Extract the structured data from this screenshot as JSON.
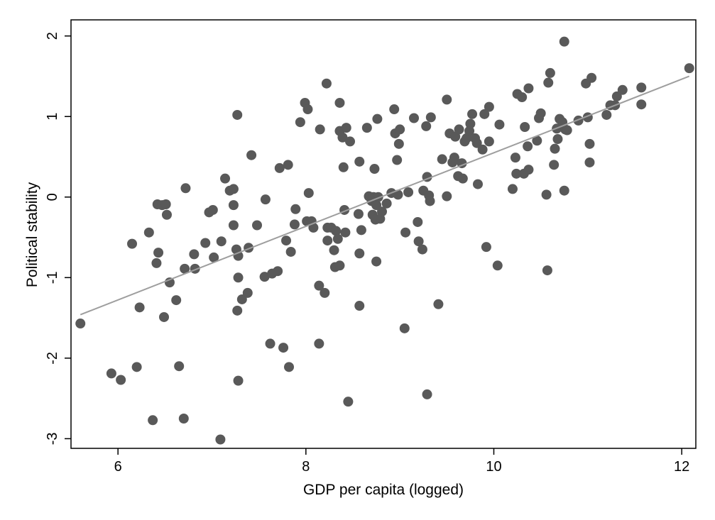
{
  "chart_data": {
    "type": "scatter",
    "title": "",
    "xlabel": "GDP per capita (logged)",
    "ylabel": "Political stability",
    "xlim": [
      5.5,
      12.15
    ],
    "ylim": [
      -3.12,
      2.2
    ],
    "x_ticks": [
      6,
      8,
      10,
      12
    ],
    "y_ticks": [
      -3,
      -2,
      -1,
      0,
      1,
      2
    ],
    "grid": false,
    "legend": "none",
    "colors": {
      "points": "#595959",
      "fit_line": "#9e9e9e",
      "frame": "#000000"
    },
    "fit_line": {
      "x": [
        5.6,
        12.08
      ],
      "y": [
        -1.46,
        1.5
      ]
    },
    "points": [
      {
        "x": 5.6,
        "y": -1.57
      },
      {
        "x": 5.93,
        "y": -2.19
      },
      {
        "x": 6.03,
        "y": -2.27
      },
      {
        "x": 6.15,
        "y": -0.58
      },
      {
        "x": 6.2,
        "y": -2.11
      },
      {
        "x": 6.23,
        "y": -1.37
      },
      {
        "x": 6.33,
        "y": -0.44
      },
      {
        "x": 6.37,
        "y": -2.77
      },
      {
        "x": 6.41,
        "y": -0.82
      },
      {
        "x": 6.42,
        "y": -0.09
      },
      {
        "x": 6.43,
        "y": -0.69
      },
      {
        "x": 6.47,
        "y": -0.1
      },
      {
        "x": 6.49,
        "y": -1.49
      },
      {
        "x": 6.51,
        "y": -0.09
      },
      {
        "x": 6.52,
        "y": -0.22
      },
      {
        "x": 6.55,
        "y": -1.06
      },
      {
        "x": 6.62,
        "y": -1.28
      },
      {
        "x": 6.65,
        "y": -2.1
      },
      {
        "x": 6.7,
        "y": -2.75
      },
      {
        "x": 6.71,
        "y": -0.89
      },
      {
        "x": 6.72,
        "y": 0.11
      },
      {
        "x": 6.81,
        "y": -0.71
      },
      {
        "x": 6.82,
        "y": -0.89
      },
      {
        "x": 6.93,
        "y": -0.57
      },
      {
        "x": 6.97,
        "y": -0.19
      },
      {
        "x": 7.01,
        "y": -0.16
      },
      {
        "x": 7.02,
        "y": -0.75
      },
      {
        "x": 7.09,
        "y": -3.01
      },
      {
        "x": 7.1,
        "y": -0.55
      },
      {
        "x": 7.14,
        "y": 0.23
      },
      {
        "x": 7.19,
        "y": 0.08
      },
      {
        "x": 7.23,
        "y": 0.1
      },
      {
        "x": 7.23,
        "y": -0.1
      },
      {
        "x": 7.23,
        "y": -0.35
      },
      {
        "x": 7.26,
        "y": -0.65
      },
      {
        "x": 7.27,
        "y": 1.02
      },
      {
        "x": 7.27,
        "y": -1.41
      },
      {
        "x": 7.28,
        "y": -2.28
      },
      {
        "x": 7.28,
        "y": -0.73
      },
      {
        "x": 7.28,
        "y": -1.0
      },
      {
        "x": 7.32,
        "y": -1.27
      },
      {
        "x": 7.38,
        "y": -1.19
      },
      {
        "x": 7.39,
        "y": -0.63
      },
      {
        "x": 7.42,
        "y": 0.52
      },
      {
        "x": 7.48,
        "y": -0.35
      },
      {
        "x": 7.56,
        "y": -0.99
      },
      {
        "x": 7.57,
        "y": -0.03
      },
      {
        "x": 7.62,
        "y": -1.82
      },
      {
        "x": 7.64,
        "y": -0.95
      },
      {
        "x": 7.7,
        "y": -0.92
      },
      {
        "x": 7.72,
        "y": 0.36
      },
      {
        "x": 7.76,
        "y": -1.87
      },
      {
        "x": 7.79,
        "y": -0.54
      },
      {
        "x": 7.81,
        "y": 0.4
      },
      {
        "x": 7.82,
        "y": -2.11
      },
      {
        "x": 7.84,
        "y": -0.68
      },
      {
        "x": 7.88,
        "y": -0.34
      },
      {
        "x": 7.89,
        "y": -0.15
      },
      {
        "x": 7.94,
        "y": 0.93
      },
      {
        "x": 7.99,
        "y": 1.17
      },
      {
        "x": 8.01,
        "y": -0.3
      },
      {
        "x": 8.02,
        "y": 1.09
      },
      {
        "x": 8.03,
        "y": 0.05
      },
      {
        "x": 8.06,
        "y": -0.3
      },
      {
        "x": 8.08,
        "y": -0.38
      },
      {
        "x": 8.14,
        "y": -1.82
      },
      {
        "x": 8.14,
        "y": -1.1
      },
      {
        "x": 8.15,
        "y": 0.84
      },
      {
        "x": 8.2,
        "y": -1.19
      },
      {
        "x": 8.22,
        "y": 1.41
      },
      {
        "x": 8.23,
        "y": -0.38
      },
      {
        "x": 8.23,
        "y": -0.54
      },
      {
        "x": 8.27,
        "y": -0.38
      },
      {
        "x": 8.3,
        "y": -0.66
      },
      {
        "x": 8.31,
        "y": -0.87
      },
      {
        "x": 8.32,
        "y": -0.42
      },
      {
        "x": 8.34,
        "y": -0.52
      },
      {
        "x": 8.36,
        "y": -0.85
      },
      {
        "x": 8.36,
        "y": 0.82
      },
      {
        "x": 8.36,
        "y": 1.17
      },
      {
        "x": 8.39,
        "y": 0.74
      },
      {
        "x": 8.4,
        "y": 0.37
      },
      {
        "x": 8.41,
        "y": -0.16
      },
      {
        "x": 8.42,
        "y": -0.44
      },
      {
        "x": 8.43,
        "y": 0.86
      },
      {
        "x": 8.45,
        "y": -2.54
      },
      {
        "x": 8.47,
        "y": 0.69
      },
      {
        "x": 8.56,
        "y": -0.21
      },
      {
        "x": 8.57,
        "y": 0.44
      },
      {
        "x": 8.57,
        "y": -1.35
      },
      {
        "x": 8.57,
        "y": -0.7
      },
      {
        "x": 8.59,
        "y": -0.41
      },
      {
        "x": 8.65,
        "y": 0.86
      },
      {
        "x": 8.67,
        "y": 0.01
      },
      {
        "x": 8.7,
        "y": -0.05
      },
      {
        "x": 8.71,
        "y": -0.22
      },
      {
        "x": 8.72,
        "y": 0.0
      },
      {
        "x": 8.73,
        "y": 0.35
      },
      {
        "x": 8.74,
        "y": -0.28
      },
      {
        "x": 8.75,
        "y": -0.1
      },
      {
        "x": 8.75,
        "y": -0.8
      },
      {
        "x": 8.76,
        "y": 0.97
      },
      {
        "x": 8.77,
        "y": 0.0
      },
      {
        "x": 8.79,
        "y": -0.27
      },
      {
        "x": 8.81,
        "y": -0.18
      },
      {
        "x": 8.86,
        "y": -0.08
      },
      {
        "x": 8.91,
        "y": 0.05
      },
      {
        "x": 8.94,
        "y": 1.09
      },
      {
        "x": 8.95,
        "y": 0.79
      },
      {
        "x": 8.97,
        "y": 0.46
      },
      {
        "x": 8.98,
        "y": 0.03
      },
      {
        "x": 8.99,
        "y": 0.66
      },
      {
        "x": 9.0,
        "y": 0.84
      },
      {
        "x": 9.05,
        "y": -1.63
      },
      {
        "x": 9.06,
        "y": -0.44
      },
      {
        "x": 9.09,
        "y": 0.06
      },
      {
        "x": 9.15,
        "y": 0.98
      },
      {
        "x": 9.19,
        "y": -0.31
      },
      {
        "x": 9.2,
        "y": -0.55
      },
      {
        "x": 9.24,
        "y": -0.65
      },
      {
        "x": 9.25,
        "y": 0.08
      },
      {
        "x": 9.28,
        "y": 0.88
      },
      {
        "x": 9.29,
        "y": -2.45
      },
      {
        "x": 9.29,
        "y": 0.25
      },
      {
        "x": 9.31,
        "y": 0.02
      },
      {
        "x": 9.32,
        "y": -0.05
      },
      {
        "x": 9.33,
        "y": 0.99
      },
      {
        "x": 9.41,
        "y": -1.33
      },
      {
        "x": 9.45,
        "y": 0.47
      },
      {
        "x": 9.5,
        "y": 1.21
      },
      {
        "x": 9.5,
        "y": 0.01
      },
      {
        "x": 9.53,
        "y": 0.79
      },
      {
        "x": 9.56,
        "y": 0.43
      },
      {
        "x": 9.58,
        "y": 0.49
      },
      {
        "x": 9.59,
        "y": 0.75
      },
      {
        "x": 9.62,
        "y": 0.26
      },
      {
        "x": 9.63,
        "y": 0.84
      },
      {
        "x": 9.66,
        "y": 0.42
      },
      {
        "x": 9.67,
        "y": 0.23
      },
      {
        "x": 9.69,
        "y": 0.69
      },
      {
        "x": 9.71,
        "y": 0.73
      },
      {
        "x": 9.74,
        "y": 0.82
      },
      {
        "x": 9.75,
        "y": 0.91
      },
      {
        "x": 9.77,
        "y": 1.03
      },
      {
        "x": 9.8,
        "y": 0.73
      },
      {
        "x": 9.82,
        "y": 0.67
      },
      {
        "x": 9.83,
        "y": 0.16
      },
      {
        "x": 9.88,
        "y": 0.59
      },
      {
        "x": 9.9,
        "y": 1.03
      },
      {
        "x": 9.92,
        "y": -0.62
      },
      {
        "x": 9.95,
        "y": 0.69
      },
      {
        "x": 9.95,
        "y": 1.12
      },
      {
        "x": 10.04,
        "y": -0.85
      },
      {
        "x": 10.06,
        "y": 0.9
      },
      {
        "x": 10.2,
        "y": 0.1
      },
      {
        "x": 10.23,
        "y": 0.49
      },
      {
        "x": 10.24,
        "y": 0.29
      },
      {
        "x": 10.25,
        "y": 1.28
      },
      {
        "x": 10.3,
        "y": 1.24
      },
      {
        "x": 10.32,
        "y": 0.29
      },
      {
        "x": 10.33,
        "y": 0.87
      },
      {
        "x": 10.36,
        "y": 0.63
      },
      {
        "x": 10.37,
        "y": 1.35
      },
      {
        "x": 10.37,
        "y": 0.34
      },
      {
        "x": 10.46,
        "y": 0.7
      },
      {
        "x": 10.48,
        "y": 0.98
      },
      {
        "x": 10.5,
        "y": 1.04
      },
      {
        "x": 10.56,
        "y": 0.03
      },
      {
        "x": 10.57,
        "y": -0.91
      },
      {
        "x": 10.58,
        "y": 1.42
      },
      {
        "x": 10.6,
        "y": 1.54
      },
      {
        "x": 10.64,
        "y": 0.4
      },
      {
        "x": 10.65,
        "y": 0.6
      },
      {
        "x": 10.67,
        "y": 0.85
      },
      {
        "x": 10.68,
        "y": 0.72
      },
      {
        "x": 10.7,
        "y": 0.97
      },
      {
        "x": 10.73,
        "y": 0.93
      },
      {
        "x": 10.75,
        "y": 1.93
      },
      {
        "x": 10.75,
        "y": 0.08
      },
      {
        "x": 10.76,
        "y": 0.84
      },
      {
        "x": 10.78,
        "y": 0.83
      },
      {
        "x": 10.9,
        "y": 0.95
      },
      {
        "x": 10.98,
        "y": 1.41
      },
      {
        "x": 11.0,
        "y": 0.99
      },
      {
        "x": 11.02,
        "y": 0.43
      },
      {
        "x": 11.02,
        "y": 0.66
      },
      {
        "x": 11.04,
        "y": 1.48
      },
      {
        "x": 11.2,
        "y": 1.02
      },
      {
        "x": 11.24,
        "y": 1.14
      },
      {
        "x": 11.29,
        "y": 1.14
      },
      {
        "x": 11.31,
        "y": 1.25
      },
      {
        "x": 11.37,
        "y": 1.33
      },
      {
        "x": 11.57,
        "y": 1.15
      },
      {
        "x": 11.57,
        "y": 1.36
      },
      {
        "x": 12.08,
        "y": 1.6
      }
    ]
  }
}
